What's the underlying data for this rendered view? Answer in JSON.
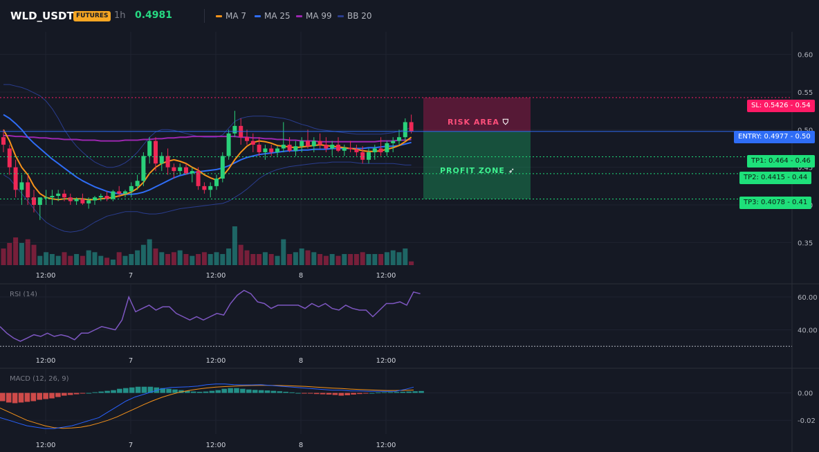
{
  "header": {
    "symbol": "WLD_USDT",
    "badge": "FUTURES",
    "timeframe": "1h",
    "last_price": "0.4981",
    "indicators": [
      {
        "label": "MA 7",
        "color": "#f7931a"
      },
      {
        "label": "MA 25",
        "color": "#2f6df6"
      },
      {
        "label": "MA 99",
        "color": "#9c27b0"
      },
      {
        "label": "BB 20",
        "color": "#2a3d8f"
      }
    ]
  },
  "colors": {
    "background": "#151924",
    "up": "#26a69a",
    "up_bright": "#2ad17a",
    "down": "#ef2856",
    "ma7": "#f7931a",
    "ma25": "#2f6df6",
    "ma99": "#9c27b0",
    "bb": "#2a3d8f",
    "rsi": "#7e57c2",
    "macd": "#2962ff",
    "signal": "#f7931a",
    "sl": "#ff1a66",
    "entry": "#2f6df6",
    "tp": "#1ee07a"
  },
  "panes": {
    "rsi_label": "RSI (14)",
    "macd_label": "MACD (12, 26, 9)"
  },
  "x_ticks": [
    "12:00",
    "7",
    "12:00",
    "8",
    "12:00"
  ],
  "trade": {
    "risk_label": "RISK AREA",
    "profit_label": "PROFIT ZONE",
    "risk_icon": "shield-icon",
    "profit_icon": "rocket-icon",
    "levels": [
      {
        "kind": "sl",
        "price": 0.5426,
        "text": "SL: 0.5426",
        "axis": "0.54"
      },
      {
        "kind": "entry",
        "price": 0.4977,
        "text": "ENTRY: 0.4977",
        "axis": "0.50"
      },
      {
        "kind": "tp",
        "price": 0.464,
        "text": "TP1: 0.464",
        "axis": "0.46"
      },
      {
        "kind": "tp",
        "price": 0.4415,
        "text": "TP2: 0.4415",
        "axis": "0.44"
      },
      {
        "kind": "tp",
        "price": 0.4078,
        "text": "TP3: 0.4078",
        "axis": "0.41"
      }
    ]
  },
  "chart_data": [
    {
      "type": "candlestick",
      "title": "WLD_USDT",
      "ylim": [
        0.32,
        0.63
      ],
      "y_ticks": [
        0.6,
        0.55,
        0.5,
        0.45,
        0.4,
        0.35
      ],
      "candles": [
        [
          0.49,
          0.5,
          0.47,
          0.48
        ],
        [
          0.475,
          0.48,
          0.44,
          0.45
        ],
        [
          0.45,
          0.46,
          0.41,
          0.42
        ],
        [
          0.42,
          0.44,
          0.4,
          0.43
        ],
        [
          0.43,
          0.44,
          0.4,
          0.41
        ],
        [
          0.41,
          0.42,
          0.39,
          0.4
        ],
        [
          0.4,
          0.41,
          0.38,
          0.41
        ],
        [
          0.41,
          0.42,
          0.4,
          0.41
        ],
        [
          0.41,
          0.42,
          0.4,
          0.412
        ],
        [
          0.412,
          0.42,
          0.405,
          0.415
        ],
        [
          0.415,
          0.42,
          0.405,
          0.41
        ],
        [
          0.41,
          0.415,
          0.4,
          0.405
        ],
        [
          0.405,
          0.41,
          0.4,
          0.408
        ],
        [
          0.408,
          0.415,
          0.4,
          0.402
        ],
        [
          0.402,
          0.41,
          0.395,
          0.406
        ],
        [
          0.406,
          0.412,
          0.4,
          0.41
        ],
        [
          0.41,
          0.415,
          0.405,
          0.412
        ],
        [
          0.412,
          0.418,
          0.405,
          0.408
        ],
        [
          0.408,
          0.42,
          0.405,
          0.418
        ],
        [
          0.418,
          0.425,
          0.41,
          0.415
        ],
        [
          0.415,
          0.42,
          0.41,
          0.418
        ],
        [
          0.418,
          0.43,
          0.41,
          0.425
        ],
        [
          0.425,
          0.44,
          0.42,
          0.432
        ],
        [
          0.432,
          0.47,
          0.425,
          0.465
        ],
        [
          0.465,
          0.49,
          0.455,
          0.485
        ],
        [
          0.485,
          0.49,
          0.445,
          0.455
        ],
        [
          0.455,
          0.47,
          0.445,
          0.465
        ],
        [
          0.465,
          0.475,
          0.44,
          0.45
        ],
        [
          0.45,
          0.455,
          0.435,
          0.445
        ],
        [
          0.445,
          0.455,
          0.44,
          0.45
        ],
        [
          0.45,
          0.455,
          0.44,
          0.442
        ],
        [
          0.442,
          0.45,
          0.43,
          0.445
        ],
        [
          0.445,
          0.45,
          0.42,
          0.425
        ],
        [
          0.425,
          0.43,
          0.415,
          0.42
        ],
        [
          0.42,
          0.43,
          0.41,
          0.425
        ],
        [
          0.425,
          0.44,
          0.42,
          0.435
        ],
        [
          0.435,
          0.47,
          0.43,
          0.465
        ],
        [
          0.465,
          0.5,
          0.46,
          0.495
        ],
        [
          0.495,
          0.525,
          0.49,
          0.505
        ],
        [
          0.505,
          0.515,
          0.48,
          0.49
        ],
        [
          0.49,
          0.5,
          0.48,
          0.485
        ],
        [
          0.485,
          0.495,
          0.47,
          0.48
        ],
        [
          0.48,
          0.49,
          0.465,
          0.47
        ],
        [
          0.47,
          0.48,
          0.46,
          0.475
        ],
        [
          0.475,
          0.48,
          0.465,
          0.47
        ],
        [
          0.47,
          0.478,
          0.465,
          0.475
        ],
        [
          0.475,
          0.51,
          0.47,
          0.48
        ],
        [
          0.48,
          0.49,
          0.47,
          0.472
        ],
        [
          0.472,
          0.485,
          0.465,
          0.478
        ],
        [
          0.478,
          0.49,
          0.47,
          0.485
        ],
        [
          0.485,
          0.5,
          0.475,
          0.478
        ],
        [
          0.478,
          0.49,
          0.47,
          0.485
        ],
        [
          0.485,
          0.495,
          0.475,
          0.48
        ],
        [
          0.48,
          0.49,
          0.47,
          0.475
        ],
        [
          0.475,
          0.485,
          0.465,
          0.48
        ],
        [
          0.48,
          0.49,
          0.47,
          0.472
        ],
        [
          0.472,
          0.48,
          0.465,
          0.476
        ],
        [
          0.476,
          0.485,
          0.47,
          0.474
        ],
        [
          0.474,
          0.48,
          0.465,
          0.47
        ],
        [
          0.47,
          0.478,
          0.455,
          0.46
        ],
        [
          0.46,
          0.475,
          0.455,
          0.47
        ],
        [
          0.47,
          0.48,
          0.46,
          0.475
        ],
        [
          0.475,
          0.49,
          0.465,
          0.47
        ],
        [
          0.47,
          0.485,
          0.465,
          0.482
        ],
        [
          0.482,
          0.49,
          0.47,
          0.485
        ],
        [
          0.485,
          0.5,
          0.48,
          0.49
        ],
        [
          0.49,
          0.515,
          0.485,
          0.51
        ],
        [
          0.51,
          0.52,
          0.495,
          0.498
        ]
      ],
      "volume": [
        18,
        24,
        30,
        24,
        28,
        22,
        10,
        14,
        12,
        10,
        14,
        10,
        12,
        10,
        16,
        14,
        10,
        8,
        6,
        14,
        10,
        12,
        16,
        22,
        28,
        18,
        14,
        12,
        14,
        16,
        12,
        10,
        12,
        14,
        12,
        14,
        12,
        18,
        42,
        22,
        16,
        12,
        12,
        14,
        12,
        10,
        28,
        12,
        14,
        18,
        16,
        14,
        12,
        10,
        12,
        10,
        12,
        12,
        12,
        14,
        12,
        12,
        12,
        14,
        16,
        14,
        18,
        4
      ],
      "ma7": [
        0.5,
        0.485,
        0.465,
        0.45,
        0.44,
        0.425,
        0.415,
        0.41,
        0.408,
        0.407,
        0.408,
        0.408,
        0.408,
        0.408,
        0.407,
        0.407,
        0.408,
        0.409,
        0.41,
        0.412,
        0.414,
        0.417,
        0.422,
        0.43,
        0.442,
        0.45,
        0.455,
        0.458,
        0.46,
        0.458,
        0.455,
        0.45,
        0.446,
        0.44,
        0.436,
        0.433,
        0.438,
        0.448,
        0.46,
        0.47,
        0.478,
        0.483,
        0.485,
        0.484,
        0.482,
        0.479,
        0.478,
        0.477,
        0.476,
        0.477,
        0.478,
        0.479,
        0.48,
        0.479,
        0.478,
        0.477,
        0.476,
        0.475,
        0.474,
        0.472,
        0.471,
        0.471,
        0.472,
        0.474,
        0.476,
        0.479,
        0.484,
        0.49
      ],
      "ma25": [
        0.52,
        0.515,
        0.508,
        0.5,
        0.49,
        0.482,
        0.475,
        0.468,
        0.461,
        0.455,
        0.449,
        0.443,
        0.437,
        0.432,
        0.428,
        0.424,
        0.421,
        0.418,
        0.416,
        0.415,
        0.414,
        0.414,
        0.415,
        0.417,
        0.42,
        0.424,
        0.428,
        0.432,
        0.436,
        0.439,
        0.441,
        0.443,
        0.444,
        0.445,
        0.446,
        0.447,
        0.449,
        0.452,
        0.456,
        0.46,
        0.463,
        0.465,
        0.467,
        0.468,
        0.469,
        0.47,
        0.471,
        0.472,
        0.472,
        0.473,
        0.473,
        0.474,
        0.474,
        0.474,
        0.475,
        0.475,
        0.475,
        0.475,
        0.475,
        0.475,
        0.476,
        0.476,
        0.477,
        0.478,
        0.478,
        0.479,
        0.481,
        0.483
      ],
      "ma99": [
        0.492,
        0.492,
        0.491,
        0.491,
        0.49,
        0.49,
        0.489,
        0.489,
        0.488,
        0.488,
        0.487,
        0.487,
        0.487,
        0.486,
        0.486,
        0.486,
        0.485,
        0.485,
        0.485,
        0.485,
        0.486,
        0.486,
        0.486,
        0.487,
        0.487,
        0.488,
        0.488,
        0.489,
        0.489,
        0.49,
        0.49,
        0.491,
        0.491,
        0.491,
        0.491,
        0.491,
        0.491,
        0.491,
        0.491,
        0.49,
        0.49,
        0.489,
        0.489,
        0.488,
        0.488,
        0.487,
        0.487,
        0.486,
        0.486,
        0.485,
        0.485,
        0.485,
        0.484,
        0.484,
        0.484,
        0.484,
        0.484,
        0.484,
        0.484,
        0.484,
        0.484,
        0.484,
        0.485,
        0.485,
        0.485,
        0.486,
        0.486,
        0.487
      ],
      "bb_upper": [
        0.56,
        0.56,
        0.558,
        0.556,
        0.553,
        0.549,
        0.545,
        0.538,
        0.528,
        0.515,
        0.5,
        0.488,
        0.478,
        0.47,
        0.463,
        0.457,
        0.453,
        0.45,
        0.45,
        0.452,
        0.456,
        0.462,
        0.47,
        0.48,
        0.49,
        0.497,
        0.5,
        0.5,
        0.499,
        0.497,
        0.495,
        0.493,
        0.491,
        0.49,
        0.49,
        0.49,
        0.493,
        0.502,
        0.511,
        0.515,
        0.517,
        0.518,
        0.518,
        0.518,
        0.517,
        0.516,
        0.515,
        0.513,
        0.51,
        0.507,
        0.505,
        0.502,
        0.5,
        0.499,
        0.498,
        0.497,
        0.496,
        0.495,
        0.494,
        0.494,
        0.494,
        0.494,
        0.494,
        0.495,
        0.496,
        0.498,
        0.5,
        0.503
      ],
      "bb_lower": [
        0.44,
        0.435,
        0.425,
        0.415,
        0.405,
        0.395,
        0.385,
        0.377,
        0.372,
        0.368,
        0.365,
        0.364,
        0.365,
        0.367,
        0.372,
        0.377,
        0.381,
        0.385,
        0.387,
        0.389,
        0.391,
        0.391,
        0.391,
        0.389,
        0.388,
        0.388,
        0.389,
        0.391,
        0.393,
        0.395,
        0.396,
        0.397,
        0.398,
        0.399,
        0.4,
        0.401,
        0.402,
        0.405,
        0.41,
        0.415,
        0.421,
        0.428,
        0.435,
        0.44,
        0.444,
        0.447,
        0.449,
        0.451,
        0.452,
        0.453,
        0.454,
        0.455,
        0.456,
        0.456,
        0.457,
        0.457,
        0.457,
        0.457,
        0.456,
        0.455,
        0.455,
        0.455,
        0.455,
        0.455,
        0.455,
        0.454,
        0.453,
        0.453
      ]
    },
    {
      "type": "line",
      "title": "RSI (14)",
      "ylim": [
        28,
        68
      ],
      "y_ticks": [
        60,
        40
      ],
      "values": [
        42,
        38,
        35,
        33,
        35,
        37,
        36,
        38,
        36,
        37,
        36,
        34,
        38,
        38,
        40,
        42,
        41,
        40,
        46,
        60,
        51,
        53,
        55,
        52,
        54,
        54,
        50,
        48,
        46,
        48,
        46,
        48,
        50,
        49,
        56,
        61,
        64,
        62,
        57,
        56,
        53,
        55,
        55,
        55,
        55,
        53,
        56,
        54,
        56,
        53,
        52,
        55,
        53,
        52,
        52,
        48,
        52,
        56,
        56,
        57,
        55,
        63,
        62
      ],
      "guide": 30
    },
    {
      "type": "bar",
      "title": "MACD (12, 26, 9)",
      "ylim": [
        -0.03,
        0.018
      ],
      "y_ticks": [
        0.0,
        -0.02
      ],
      "histogram": [
        -0.006,
        -0.007,
        -0.0075,
        -0.007,
        -0.0065,
        -0.006,
        -0.005,
        -0.0045,
        -0.004,
        -0.003,
        -0.002,
        -0.0015,
        -0.001,
        -0.0005,
        0.0,
        0.0005,
        0.001,
        0.0015,
        0.002,
        0.003,
        0.0035,
        0.004,
        0.0045,
        0.0045,
        0.0045,
        0.004,
        0.0035,
        0.003,
        0.0025,
        0.002,
        0.0015,
        0.001,
        0.0008,
        0.001,
        0.0015,
        0.002,
        0.003,
        0.0035,
        0.0035,
        0.003,
        0.0025,
        0.0022,
        0.002,
        0.0018,
        0.0015,
        0.0012,
        0.0008,
        0.0004,
        0.0,
        -0.0003,
        -0.0005,
        -0.0008,
        -0.001,
        -0.0012,
        -0.0015,
        -0.002,
        -0.0017,
        -0.0012,
        -0.0008,
        -0.0004,
        0.0,
        0.0003,
        0.0005,
        0.0006,
        0.0007,
        0.0008,
        0.001,
        0.0012,
        0.0014
      ],
      "macd": [
        -0.018,
        -0.02,
        -0.022,
        -0.024,
        -0.025,
        -0.026,
        -0.026,
        -0.025,
        -0.024,
        -0.022,
        -0.02,
        -0.018,
        -0.014,
        -0.01,
        -0.006,
        -0.003,
        -0.001,
        0.001,
        0.003,
        0.004,
        0.0042,
        0.0045,
        0.005,
        0.006,
        0.0065,
        0.0065,
        0.006,
        0.0058,
        0.0058,
        0.006,
        0.0055,
        0.005,
        0.0045,
        0.004,
        0.0035,
        0.003,
        0.0025,
        0.002,
        0.002,
        0.0015,
        0.0015,
        0.0012,
        0.0012,
        0.0011,
        0.0012,
        0.0025,
        0.0042
      ],
      "signal": [
        -0.011,
        -0.014,
        -0.017,
        -0.02,
        -0.022,
        -0.024,
        -0.0253,
        -0.0258,
        -0.0256,
        -0.025,
        -0.0238,
        -0.022,
        -0.02,
        -0.0175,
        -0.0145,
        -0.0115,
        -0.0085,
        -0.0057,
        -0.0032,
        -0.0012,
        0.0005,
        0.0018,
        0.0028,
        0.0036,
        0.0042,
        0.0046,
        0.0049,
        0.0052,
        0.0054,
        0.0055,
        0.0055,
        0.0054,
        0.0052,
        0.005,
        0.0047,
        0.0043,
        0.0039,
        0.0035,
        0.0032,
        0.0028,
        0.0025,
        0.0022,
        0.002,
        0.0018,
        0.0018,
        0.0019,
        0.0021
      ]
    }
  ]
}
